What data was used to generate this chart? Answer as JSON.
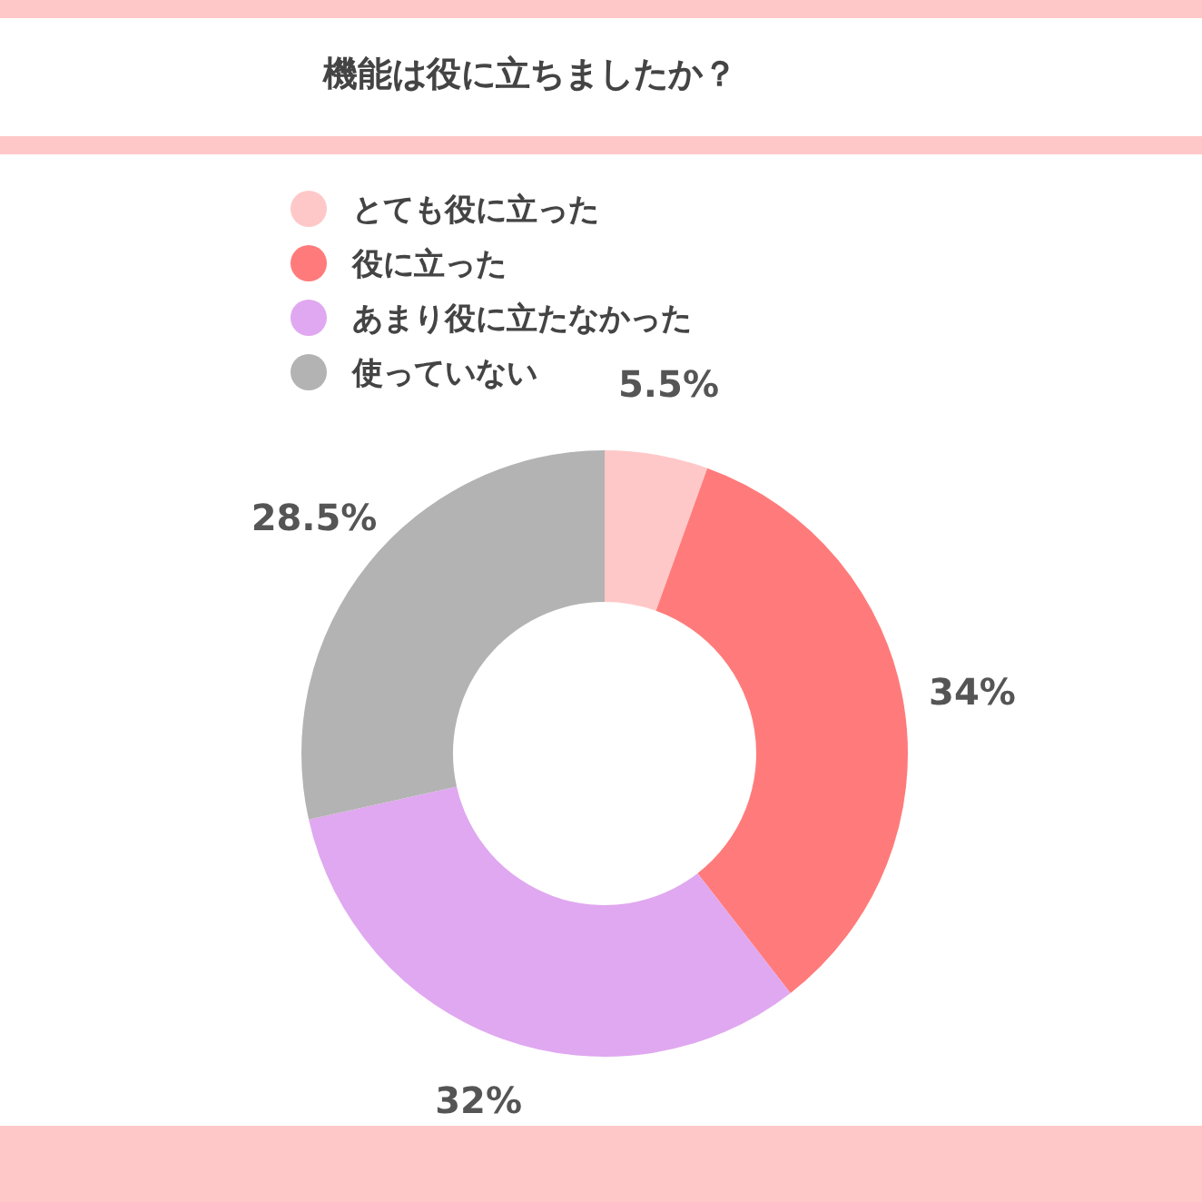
{
  "chart_data": {
    "type": "donut",
    "title": "機能は役に立ちましたか？",
    "categories": [
      "とても役に立った",
      "役に立った",
      "あまり役に立たなかった",
      "使っていない"
    ],
    "values": [
      5.5,
      34,
      32,
      28.5
    ],
    "colors": [
      "#ffc8c8",
      "#ff7b7b",
      "#e0a8f0",
      "#b3b3b3"
    ],
    "value_labels": [
      "5.5%",
      "34%",
      "32%",
      "28.5%"
    ],
    "legend": "top"
  }
}
